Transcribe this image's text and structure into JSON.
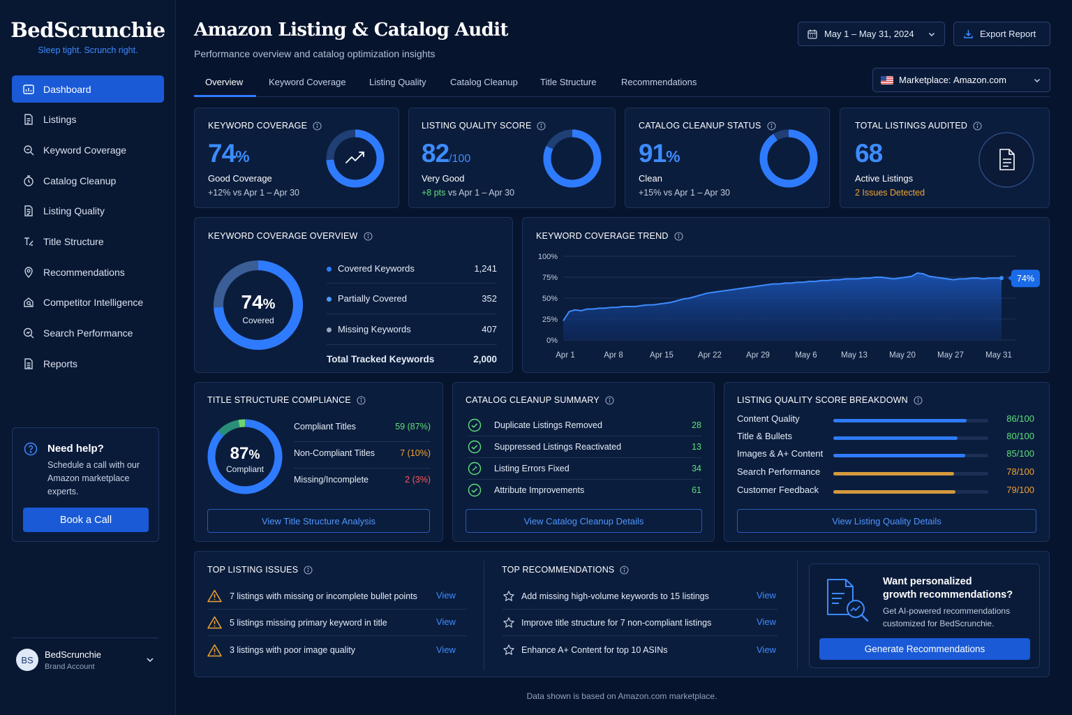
{
  "brand": {
    "name": "BedScrunchie",
    "tagline": "Sleep tight. Scrunch right."
  },
  "sidebar": {
    "items": [
      {
        "label": "Dashboard",
        "icon": "dashboard-icon",
        "active": true
      },
      {
        "label": "Listings",
        "icon": "document-icon"
      },
      {
        "label": "Keyword Coverage",
        "icon": "search-icon"
      },
      {
        "label": "Catalog Cleanup",
        "icon": "cleanup-icon"
      },
      {
        "label": "Listing Quality",
        "icon": "document-check-icon"
      },
      {
        "label": "Title Structure",
        "icon": "title-icon"
      },
      {
        "label": "Recommendations",
        "icon": "location-pin-icon"
      },
      {
        "label": "Competitor Intelligence",
        "icon": "competitor-icon"
      },
      {
        "label": "Search Performance",
        "icon": "search-performance-icon"
      },
      {
        "label": "Reports",
        "icon": "report-icon"
      }
    ],
    "help": {
      "title": "Need help?",
      "text": "Schedule a call with our Amazon marketplace experts.",
      "button": "Book a Call"
    },
    "account": {
      "initials": "BS",
      "name": "BedScrunchie",
      "role": "Brand Account"
    }
  },
  "header": {
    "title": "Amazon Listing & Catalog Audit",
    "subtitle": "Performance overview and catalog optimization insights",
    "date_range": "May 1 – May 31, 2024",
    "export_label": "Export Report",
    "marketplace_label": "Marketplace:",
    "marketplace_value": "Amazon.com"
  },
  "tabs": [
    "Overview",
    "Keyword Coverage",
    "Listing Quality",
    "Catalog Cleanup",
    "Title Structure",
    "Recommendations"
  ],
  "kpis": {
    "keyword": {
      "title": "KEYWORD COVERAGE",
      "value": "74",
      "unit": "%",
      "label": "Good Coverage",
      "delta": "+12% vs Apr 1 – Apr 30",
      "progress": 0.74
    },
    "quality": {
      "title": "LISTING QUALITY SCORE",
      "value": "82",
      "unit": "/100",
      "label": "Very Good",
      "delta_highlight": "+8 pts",
      "delta_rest": " vs Apr 1 – Apr 30",
      "progress": 0.82
    },
    "cleanup": {
      "title": "CATALOG CLEANUP STATUS",
      "value": "91",
      "unit": "%",
      "label": "Clean",
      "delta": "+15% vs Apr 1 – Apr 30",
      "progress": 0.91
    },
    "total": {
      "title": "TOTAL LISTINGS AUDITED",
      "value": "68",
      "label": "Active Listings",
      "issues": "2 Issues Detected"
    }
  },
  "kw_overview": {
    "title": "KEYWORD COVERAGE OVERVIEW",
    "center_value": "74",
    "center_unit": "%",
    "center_label": "Covered",
    "rows": [
      {
        "label": "Covered Keywords",
        "value": "1,241",
        "color": "#2f7bff"
      },
      {
        "label": "Partially Covered",
        "value": "352",
        "color": "#4a9bff"
      },
      {
        "label": "Missing Keywords",
        "value": "407",
        "color": "#9aa8bf"
      }
    ],
    "total_label": "Total Tracked Keywords",
    "total_value": "2,000"
  },
  "chart_data": {
    "type": "area",
    "title": "KEYWORD COVERAGE TREND",
    "x_ticks": [
      "Apr 1",
      "Apr 8",
      "Apr 15",
      "Apr 22",
      "Apr 29",
      "May 6",
      "May 13",
      "May 20",
      "May 27",
      "May 31"
    ],
    "y_ticks": [
      "0%",
      "25%",
      "50%",
      "75%",
      "100%"
    ],
    "ylim": [
      0,
      100
    ],
    "y_unit": "%",
    "end_label": "74%",
    "series": [
      {
        "values": [
          23,
          34,
          36,
          35,
          37,
          37,
          38,
          38,
          39,
          39,
          40,
          40,
          40,
          41,
          42,
          42,
          43,
          44,
          45,
          47,
          49,
          50,
          52,
          54,
          56,
          57,
          58,
          59,
          60,
          61,
          62,
          63,
          64,
          65,
          66,
          67,
          67,
          68,
          68,
          69,
          69,
          70,
          70,
          71,
          71,
          72,
          72,
          73,
          73,
          73,
          74,
          74,
          75,
          75,
          74,
          73,
          74,
          75,
          76,
          80,
          79,
          76,
          75,
          74,
          73,
          72,
          73,
          73,
          74,
          74,
          73,
          74,
          74,
          74
        ]
      }
    ]
  },
  "title_compliance": {
    "title": "TITLE STRUCTURE COMPLIANCE",
    "center_value": "87",
    "center_unit": "%",
    "center_label": "Compliant",
    "rows": [
      {
        "label": "Compliant Titles",
        "value": "59 (87%)",
        "tone": "green"
      },
      {
        "label": "Non-Compliant Titles",
        "value": "7 (10%)",
        "tone": "orange"
      },
      {
        "label": "Missing/Incomplete",
        "value": "2 (3%)",
        "tone": "red"
      }
    ],
    "segments": [
      0.87,
      0.1,
      0.03
    ],
    "button": "View Title Structure Analysis"
  },
  "cleanup_summary": {
    "title": "CATALOG CLEANUP SUMMARY",
    "rows": [
      {
        "label": "Duplicate Listings Removed",
        "value": "28"
      },
      {
        "label": "Suppressed Listings Reactivated",
        "value": "13"
      },
      {
        "label": "Listing Errors Fixed",
        "value": "34"
      },
      {
        "label": "Attribute Improvements",
        "value": "61"
      }
    ],
    "button": "View Catalog Cleanup Details"
  },
  "quality_breakdown": {
    "title": "LISTING QUALITY SCORE BREAKDOWN",
    "rows": [
      {
        "label": "Content Quality",
        "value": "86/100",
        "score": 86,
        "tone": "blue"
      },
      {
        "label": "Title & Bullets",
        "value": "80/100",
        "score": 80,
        "tone": "blue"
      },
      {
        "label": "Images & A+ Content",
        "value": "85/100",
        "score": 85,
        "tone": "blue"
      },
      {
        "label": "Search Performance",
        "value": "78/100",
        "score": 78,
        "tone": "gold"
      },
      {
        "label": "Customer Feedback",
        "value": "79/100",
        "score": 79,
        "tone": "gold"
      }
    ],
    "button": "View Listing Quality Details"
  },
  "top_issues": {
    "title": "TOP LISTING ISSUES",
    "items": [
      {
        "text": "7 listings with missing or incomplete bullet points",
        "link": "View"
      },
      {
        "text": "5 listings missing primary keyword in title",
        "link": "View"
      },
      {
        "text": "3 listings with poor image quality",
        "link": "View"
      }
    ]
  },
  "top_recs": {
    "title": "TOP RECOMMENDATIONS",
    "items": [
      {
        "text": "Add missing high-volume keywords to 15 listings",
        "link": "View"
      },
      {
        "text": "Improve title structure for 7 non-compliant listings",
        "link": "View"
      },
      {
        "text": "Enhance A+ Content for top 10 ASINs",
        "link": "View"
      }
    ]
  },
  "promo": {
    "title_line1": "Want personalized",
    "title_line2": "growth recommendations?",
    "text_line1": "Get AI-powered recommendations",
    "text_line2": "customized for BedScrunchie.",
    "button": "Generate Recommendations"
  },
  "footer": "Data shown is based on Amazon.com marketplace.",
  "colors": {
    "accent": "#2f7bff",
    "green": "#5ee07a",
    "orange": "#f0a432",
    "red": "#ff5b5b",
    "gold": "#d49a3c"
  }
}
